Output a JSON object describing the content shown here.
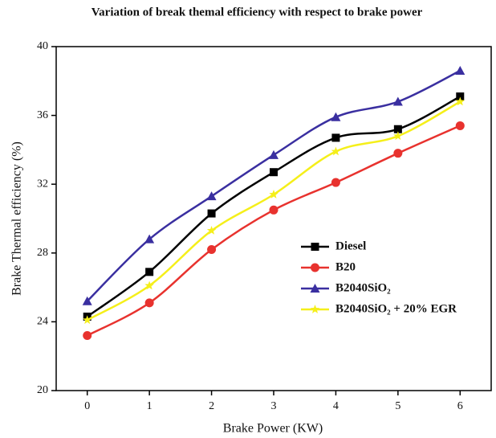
{
  "chart_data": {
    "type": "line",
    "title": "Variation of break themal efficiency with respect to brake power",
    "x_label": "Brake Power (KW)",
    "y_label": "Brake Thermal efficiency (%)",
    "x": [
      0,
      1,
      2,
      3,
      4,
      5,
      6
    ],
    "xlim": [
      -0.5,
      6.5
    ],
    "xticks": [
      0,
      1,
      2,
      3,
      4,
      5,
      6
    ],
    "ylim": [
      20,
      40
    ],
    "yticks": [
      20,
      24,
      28,
      32,
      36,
      40
    ],
    "series": [
      {
        "name": "Diesel",
        "color": "#000000",
        "marker": "square",
        "values": [
          24.3,
          26.9,
          30.3,
          32.7,
          34.7,
          35.2,
          37.1
        ]
      },
      {
        "name": "B20",
        "color": "#e8322e",
        "marker": "circle",
        "values": [
          23.2,
          25.1,
          28.2,
          30.5,
          32.1,
          33.8,
          35.4
        ]
      },
      {
        "name": "B2040SiO₂",
        "color": "#3a2fa0",
        "marker": "triangle",
        "values": [
          25.2,
          28.8,
          31.3,
          33.7,
          35.9,
          36.8,
          38.6
        ]
      },
      {
        "name": "B2040SiO₂ + 20% EGR",
        "color": "#f5ef1a",
        "marker": "star",
        "values": [
          24.1,
          26.1,
          29.3,
          31.4,
          33.9,
          34.8,
          36.8
        ]
      }
    ]
  }
}
